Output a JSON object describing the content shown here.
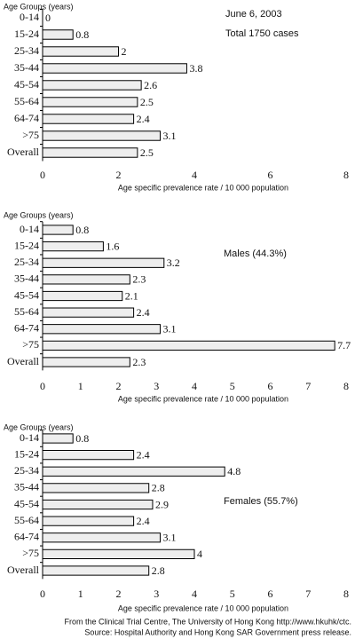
{
  "chart_data": [
    {
      "type": "bar",
      "orientation": "horizontal",
      "y_label": "Age Groups (years)",
      "categories": [
        "0-14",
        "15-24",
        "25-34",
        "35-44",
        "45-54",
        "55-64",
        "64-74",
        ">75",
        "Overall"
      ],
      "values": [
        0,
        0.8,
        2,
        3.8,
        2.6,
        2.5,
        2.4,
        3.1,
        2.5
      ],
      "color": "#eeeeee",
      "xlim": [
        0,
        8
      ],
      "xticks": [
        0,
        2,
        4,
        6,
        8
      ],
      "x_label": "Age specific prevalence rate / 10 000 population",
      "annotations": [
        "June 6, 2003",
        "Total 1750 cases"
      ]
    },
    {
      "type": "bar",
      "orientation": "horizontal",
      "y_label": "Age Groups (years)",
      "categories": [
        "0-14",
        "15-24",
        "25-34",
        "35-44",
        "45-54",
        "55-64",
        "64-74",
        ">75",
        "Overall"
      ],
      "values": [
        0.8,
        1.6,
        3.2,
        2.3,
        2.1,
        2.4,
        3.1,
        7.7,
        2.3
      ],
      "color": "#eeeeee",
      "xlim": [
        0,
        8
      ],
      "xticks": [
        0,
        1,
        2,
        3,
        4,
        5,
        6,
        7,
        8
      ],
      "x_label": "Age specific prevalence rate / 10 000 population",
      "annotations": [
        "Males (44.3%)"
      ]
    },
    {
      "type": "bar",
      "orientation": "horizontal",
      "y_label": "Age Groups (years)",
      "categories": [
        "0-14",
        "15-24",
        "25-34",
        "35-44",
        "45-54",
        "55-64",
        "64-74",
        ">75",
        "Overall"
      ],
      "values": [
        0.8,
        2.4,
        4.8,
        2.8,
        2.9,
        2.4,
        3.1,
        4,
        2.8
      ],
      "color": "#eeeeee",
      "xlim": [
        0,
        8
      ],
      "xticks": [
        0,
        1,
        2,
        3,
        4,
        5,
        6,
        7,
        8
      ],
      "x_label": "Age specific prevalence rate / 10 000 population",
      "annotations": [
        "Females (55.7%)"
      ]
    }
  ],
  "footer": [
    "From the Clinical Trial Centre, The University of Hong Kong http://www.hkuhk/ctc.",
    "Source: Hospital Authority and Hong Kong SAR Government press release."
  ]
}
